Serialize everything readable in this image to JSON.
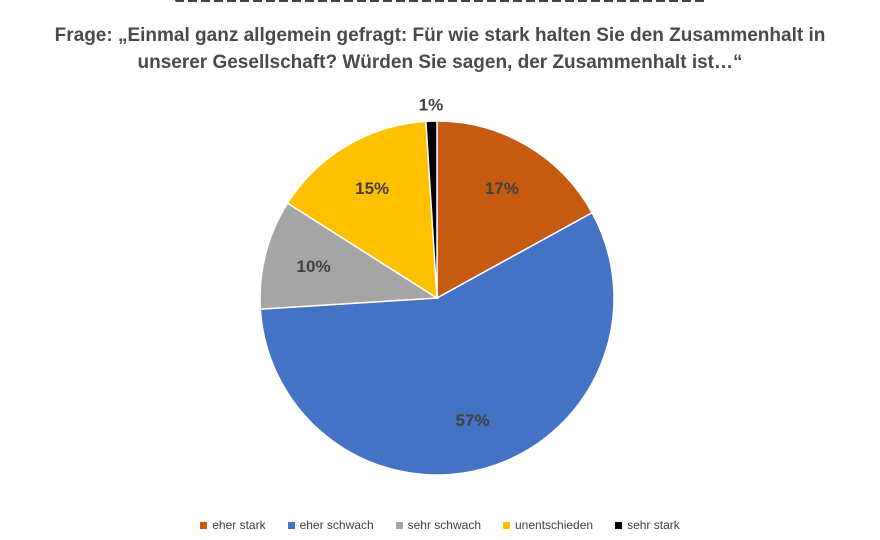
{
  "question": {
    "line1": "Frage: „Einmal ganz allgemein gefragt: Für wie stark halten Sie den Zusammenhalt in",
    "line2": "unserer Gesellschaft? Würden Sie sagen, der Zusammenhalt ist…“"
  },
  "chart_data": {
    "type": "pie",
    "title": "",
    "start_angle_deg": -90,
    "direction": "clockwise",
    "legend_position": "bottom",
    "slices": [
      {
        "label": "eher stark",
        "value": 17,
        "value_label": "17%",
        "color": "#C55A11"
      },
      {
        "label": "eher schwach",
        "value": 57,
        "value_label": "57%",
        "color": "#4472C4"
      },
      {
        "label": "sehr schwach",
        "value": 10,
        "value_label": "10%",
        "color": "#A5A5A5"
      },
      {
        "label": "unentschieden",
        "value": 15,
        "value_label": "15%",
        "color": "#FFC000"
      },
      {
        "label": "sehr stark",
        "value": 1,
        "value_label": "1%",
        "color": "#000000"
      }
    ]
  }
}
